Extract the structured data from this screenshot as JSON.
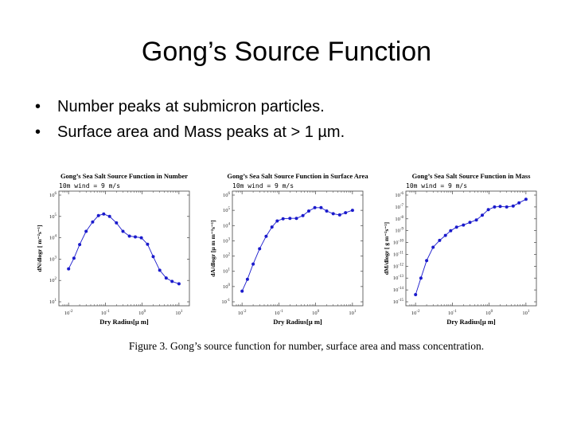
{
  "slide": {
    "title": "Gong’s Source Function",
    "bullets": [
      "Number peaks at submicron particles.",
      "Surface area and Mass peaks at > 1 µm."
    ],
    "caption": "Figure 3. Gong’s source function for number, surface area and mass concentration."
  },
  "colors": {
    "series": "#1a1acc",
    "axis": "#444444"
  },
  "chart_data": [
    {
      "type": "line",
      "title": "Gong’s Sea Salt Source Function in Number",
      "annotation": "10m wind = 9 m/s",
      "xlabel": "Dry Radius[μ m]",
      "ylabel": "dN/dlogr [ m⁻²s⁻¹]",
      "x_scale": "log",
      "y_scale": "log",
      "xlim": [
        0.007,
        15
      ],
      "ylim": [
        10,
        1000000
      ],
      "x_ticks": [
        0.01,
        0.1,
        1,
        10
      ],
      "y_ticks": [
        10,
        100,
        1000,
        10000,
        100000,
        1000000
      ],
      "series": [
        {
          "x": [
            0.01,
            0.014,
            0.02,
            0.03,
            0.045,
            0.065,
            0.09,
            0.13,
            0.2,
            0.3,
            0.45,
            0.65,
            0.95,
            1.4,
            2,
            3,
            4.5,
            6.5,
            10
          ],
          "y": [
            350,
            1100,
            4800,
            20000,
            55000,
            110000,
            130000,
            100000,
            50000,
            20000,
            12000,
            11000,
            10000,
            5000,
            1300,
            300,
            130,
            90,
            70
          ]
        }
      ]
    },
    {
      "type": "line",
      "title": "Gong’s Sea Salt Source Function in Surface Area",
      "annotation": "10m wind = 9 m/s",
      "xlabel": "Dry Radius[μ m]",
      "ylabel": "dA/dlogr [μ m m⁻²s⁻¹]",
      "x_scale": "log",
      "y_scale": "log",
      "xlim": [
        0.007,
        15
      ],
      "ylim": [
        0.1,
        1000000
      ],
      "x_ticks": [
        0.01,
        0.1,
        1,
        10
      ],
      "y_ticks": [
        0.1,
        1,
        10,
        100,
        1000,
        10000,
        100000,
        1000000
      ],
      "series": [
        {
          "x": [
            0.01,
            0.014,
            0.02,
            0.03,
            0.045,
            0.065,
            0.09,
            0.13,
            0.2,
            0.3,
            0.45,
            0.65,
            0.95,
            1.4,
            2,
            3,
            4.5,
            6.5,
            10
          ],
          "y": [
            0.5,
            3,
            30,
            300,
            2000,
            8000,
            20000,
            28000,
            30000,
            30000,
            45000,
            90000,
            150000,
            150000,
            90000,
            60000,
            50000,
            70000,
            100000
          ]
        }
      ]
    },
    {
      "type": "line",
      "title": "Gong’s Sea Salt Source Function in Mass",
      "annotation": "10m wind = 9 m/s",
      "xlabel": "Dry Radius[μ m]",
      "ylabel": "dM/dlogr [ g m⁻²s⁻¹]",
      "x_scale": "log",
      "y_scale": "log",
      "xlim": [
        0.007,
        15
      ],
      "ylim": [
        1e-15,
        1e-06
      ],
      "x_ticks": [
        0.01,
        0.1,
        1,
        10
      ],
      "y_ticks": [
        1e-15,
        1e-14,
        1e-13,
        1e-12,
        1e-11,
        1e-10,
        1e-09,
        1e-08,
        1e-07,
        1e-06
      ],
      "series": [
        {
          "x": [
            0.01,
            0.014,
            0.02,
            0.03,
            0.045,
            0.065,
            0.09,
            0.13,
            0.2,
            0.3,
            0.45,
            0.65,
            0.95,
            1.4,
            2,
            3,
            4.5,
            6.5,
            10
          ],
          "y": [
            4e-15,
            1e-13,
            3e-12,
            4e-11,
            1.5e-10,
            4e-10,
            1e-09,
            2e-09,
            3e-09,
            5e-09,
            8e-09,
            2e-08,
            6e-08,
            1e-07,
            1.1e-07,
            1e-07,
            1.2e-07,
            2.2e-07,
            4.5e-07
          ]
        }
      ]
    }
  ]
}
